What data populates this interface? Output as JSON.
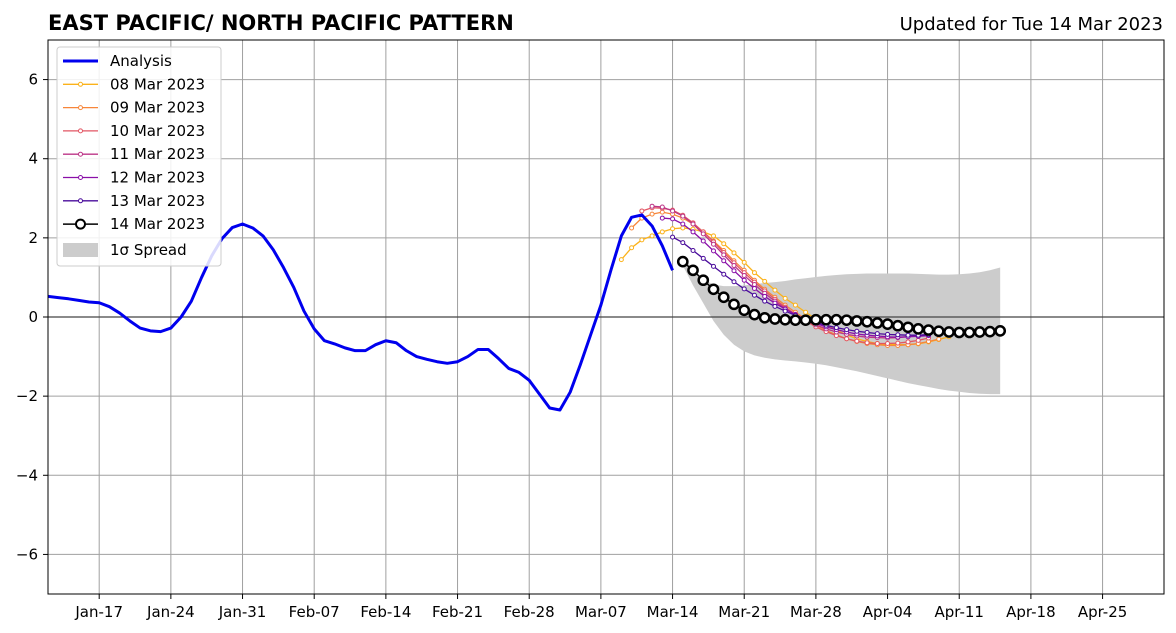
{
  "chart_data": {
    "type": "line",
    "title": "EAST PACIFIC/ NORTH PACIFIC PATTERN",
    "subtitle": "Updated for Tue 14 Mar 2023",
    "xlabel": "",
    "ylabel": "",
    "x_domain": [
      "2023-01-12",
      "2023-05-01"
    ],
    "ylim": [
      -7,
      7
    ],
    "yticks": [
      -6,
      -4,
      -2,
      0,
      2,
      4,
      6
    ],
    "ytick_labels": [
      "−6",
      "−4",
      "−2",
      "0",
      "2",
      "4",
      "6"
    ],
    "xticks": [
      {
        "date": "2023-01-17",
        "label": "Jan-17"
      },
      {
        "date": "2023-01-24",
        "label": "Jan-24"
      },
      {
        "date": "2023-01-31",
        "label": "Jan-31"
      },
      {
        "date": "2023-02-07",
        "label": "Feb-07"
      },
      {
        "date": "2023-02-14",
        "label": "Feb-14"
      },
      {
        "date": "2023-02-21",
        "label": "Feb-21"
      },
      {
        "date": "2023-02-28",
        "label": "Feb-28"
      },
      {
        "date": "2023-03-07",
        "label": "Mar-07"
      },
      {
        "date": "2023-03-14",
        "label": "Mar-14"
      },
      {
        "date": "2023-03-21",
        "label": "Mar-21"
      },
      {
        "date": "2023-03-28",
        "label": "Mar-28"
      },
      {
        "date": "2023-04-04",
        "label": "Apr-04"
      },
      {
        "date": "2023-04-11",
        "label": "Apr-11"
      },
      {
        "date": "2023-04-18",
        "label": "Apr-18"
      },
      {
        "date": "2023-04-25",
        "label": "Apr-25"
      }
    ],
    "grid": true,
    "zero_line": true,
    "legend_position": "upper-left",
    "analysis": {
      "name": "Analysis",
      "color": "#0000ee",
      "start_date": "2023-01-12",
      "values": [
        0.52,
        0.49,
        0.46,
        0.42,
        0.38,
        0.36,
        0.26,
        0.1,
        -0.1,
        -0.28,
        -0.35,
        -0.37,
        -0.28,
        0.0,
        0.4,
        1.0,
        1.55,
        1.98,
        2.26,
        2.35,
        2.25,
        2.05,
        1.7,
        1.25,
        0.75,
        0.15,
        -0.3,
        -0.6,
        -0.68,
        -0.78,
        -0.85,
        -0.85,
        -0.7,
        -0.6,
        -0.65,
        -0.85,
        -1.0,
        -1.07,
        -1.13,
        -1.17,
        -1.13,
        -1.0,
        -0.82,
        -0.82,
        -1.05,
        -1.3,
        -1.4,
        -1.6,
        -1.95,
        -2.3,
        -2.35,
        -1.9,
        -1.2,
        -0.45,
        0.3,
        1.2,
        2.05,
        2.52,
        2.58,
        2.3,
        1.8,
        1.18
      ]
    },
    "forecasts": [
      {
        "name": "08 Mar 2023",
        "color": "#fbb21a",
        "start_date": "2023-03-09",
        "values": [
          1.45,
          1.75,
          1.95,
          2.05,
          2.15,
          2.23,
          2.25,
          2.22,
          2.15,
          2.05,
          1.85,
          1.62,
          1.38,
          1.12,
          0.9,
          0.68,
          0.47,
          0.3,
          0.12,
          -0.05,
          -0.2,
          -0.33,
          -0.45,
          -0.55,
          -0.62,
          -0.67,
          -0.7,
          -0.7,
          -0.7,
          -0.68,
          -0.63,
          -0.57,
          -0.5
        ]
      },
      {
        "name": "09 Mar 2023",
        "color": "#f7863a",
        "start_date": "2023-03-10",
        "values": [
          2.25,
          2.5,
          2.6,
          2.65,
          2.6,
          2.5,
          2.35,
          2.15,
          1.92,
          1.68,
          1.42,
          1.18,
          0.93,
          0.7,
          0.5,
          0.3,
          0.12,
          -0.05,
          -0.2,
          -0.34,
          -0.45,
          -0.55,
          -0.62,
          -0.67,
          -0.7,
          -0.72,
          -0.72,
          -0.7,
          -0.67,
          -0.62,
          -0.56
        ]
      },
      {
        "name": "10 Mar 2023",
        "color": "#e25563",
        "start_date": "2023-03-11",
        "values": [
          2.68,
          2.76,
          2.75,
          2.7,
          2.57,
          2.38,
          2.15,
          1.9,
          1.63,
          1.37,
          1.12,
          0.88,
          0.66,
          0.45,
          0.25,
          0.07,
          -0.1,
          -0.25,
          -0.37,
          -0.47,
          -0.55,
          -0.61,
          -0.65,
          -0.67,
          -0.67,
          -0.66,
          -0.63,
          -0.59,
          -0.53
        ]
      },
      {
        "name": "11 Mar 2023",
        "color": "#bc3587",
        "start_date": "2023-03-12",
        "values": [
          2.8,
          2.78,
          2.68,
          2.55,
          2.35,
          2.1,
          1.84,
          1.57,
          1.3,
          1.05,
          0.82,
          0.6,
          0.4,
          0.22,
          0.06,
          -0.08,
          -0.2,
          -0.3,
          -0.38,
          -0.44,
          -0.48,
          -0.51,
          -0.52,
          -0.53,
          -0.52,
          -0.5,
          -0.47,
          -0.43
        ]
      },
      {
        "name": "12 Mar 2023",
        "color": "#8a0fa8",
        "start_date": "2023-03-13",
        "values": [
          2.5,
          2.48,
          2.35,
          2.15,
          1.92,
          1.67,
          1.42,
          1.17,
          0.93,
          0.72,
          0.52,
          0.35,
          0.2,
          0.06,
          -0.06,
          -0.16,
          -0.25,
          -0.32,
          -0.38,
          -0.43,
          -0.46,
          -0.48,
          -0.5,
          -0.51,
          -0.5,
          -0.49,
          -0.47
        ]
      },
      {
        "name": "13 Mar 2023",
        "color": "#4a0c9b",
        "start_date": "2023-03-14",
        "values": [
          2.02,
          1.88,
          1.68,
          1.48,
          1.28,
          1.08,
          0.89,
          0.71,
          0.55,
          0.4,
          0.27,
          0.15,
          0.04,
          -0.06,
          -0.14,
          -0.21,
          -0.27,
          -0.32,
          -0.36,
          -0.39,
          -0.42,
          -0.44,
          -0.45,
          -0.46,
          -0.46,
          -0.45
        ]
      },
      {
        "name": "14 Mar 2023",
        "color": "#000000",
        "start_date": "2023-03-15",
        "marker": "open-circle",
        "values": [
          1.4,
          1.18,
          0.93,
          0.7,
          0.5,
          0.32,
          0.17,
          0.06,
          -0.02,
          -0.05,
          -0.07,
          -0.08,
          -0.08,
          -0.07,
          -0.07,
          -0.07,
          -0.08,
          -0.1,
          -0.12,
          -0.15,
          -0.18,
          -0.22,
          -0.26,
          -0.3,
          -0.33,
          -0.36,
          -0.38,
          -0.39,
          -0.39,
          -0.38,
          -0.37,
          -0.35
        ]
      }
    ],
    "spread": {
      "name": "1σ Spread",
      "color": "#cccccc",
      "start_date": "2023-03-15",
      "upper": [
        1.55,
        1.2,
        0.95,
        0.82,
        0.78,
        0.78,
        0.8,
        0.83,
        0.86,
        0.88,
        0.91,
        0.95,
        0.98,
        1.01,
        1.04,
        1.06,
        1.08,
        1.09,
        1.1,
        1.1,
        1.1,
        1.1,
        1.1,
        1.09,
        1.08,
        1.07,
        1.07,
        1.08,
        1.1,
        1.13,
        1.18,
        1.25
      ],
      "lower": [
        1.3,
        0.8,
        0.35,
        -0.1,
        -0.45,
        -0.7,
        -0.87,
        -0.97,
        -1.03,
        -1.07,
        -1.1,
        -1.12,
        -1.15,
        -1.18,
        -1.22,
        -1.27,
        -1.32,
        -1.37,
        -1.43,
        -1.49,
        -1.55,
        -1.61,
        -1.67,
        -1.72,
        -1.77,
        -1.82,
        -1.86,
        -1.89,
        -1.92,
        -1.94,
        -1.95,
        -1.95
      ]
    }
  }
}
